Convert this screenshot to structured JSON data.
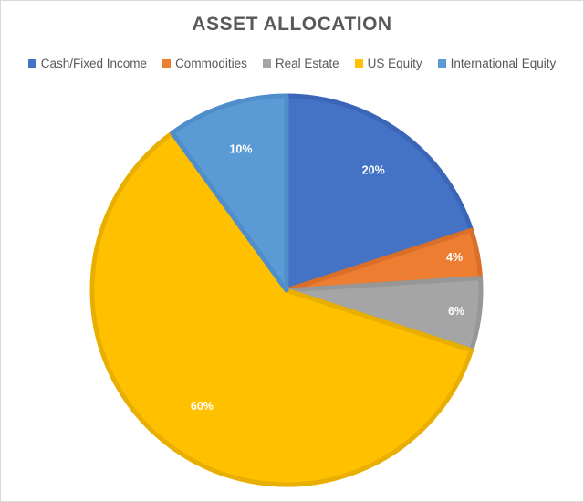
{
  "chart_data": {
    "type": "pie",
    "title": "ASSET ALLOCATION",
    "legend_position": "top",
    "series": [
      {
        "name": "Cash/Fixed Income",
        "value": 20,
        "label": "20%",
        "color": "#4472C4",
        "stroke": "#3B66B8"
      },
      {
        "name": "Commodities",
        "value": 4,
        "label": "4%",
        "color": "#ED7D31",
        "stroke": "#D96F28"
      },
      {
        "name": "Real Estate",
        "value": 6,
        "label": "6%",
        "color": "#A5A5A5",
        "stroke": "#979797"
      },
      {
        "name": "US Equity",
        "value": 60,
        "label": "60%",
        "color": "#FFC000",
        "stroke": "#E9AF00"
      },
      {
        "name": "International Equity",
        "value": 10,
        "label": "10%",
        "color": "#5B9BD5",
        "stroke": "#4F8ECB"
      }
    ]
  }
}
